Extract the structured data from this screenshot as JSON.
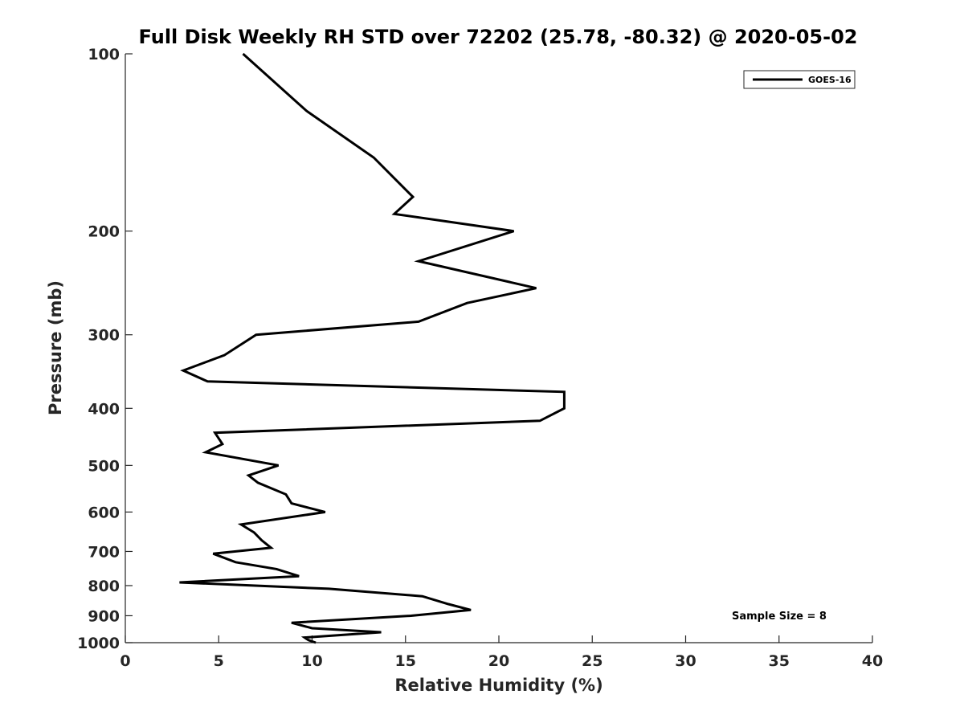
{
  "chart_data": {
    "type": "line",
    "title": "Full Disk Weekly RH STD over 72202 (25.78, -80.32) @ 2020-05-02",
    "xlabel": "Relative Humidity (%)",
    "ylabel": "Pressure (mb)",
    "xlim": [
      0,
      40
    ],
    "ylim": [
      100,
      1000
    ],
    "yscale": "log",
    "y_reversed": true,
    "grid": false,
    "legend_position": "top-right",
    "x_ticks": [
      0,
      5,
      10,
      15,
      20,
      25,
      30,
      35,
      40
    ],
    "y_ticks": [
      100,
      200,
      300,
      400,
      500,
      600,
      700,
      800,
      900,
      1000
    ],
    "series": [
      {
        "name": "GOES-16",
        "color": "#000000",
        "points": [
          [
            6.3,
            100
          ],
          [
            9.7,
            125
          ],
          [
            13.3,
            150
          ],
          [
            15.4,
            175
          ],
          [
            14.4,
            187
          ],
          [
            20.8,
            200
          ],
          [
            15.7,
            225
          ],
          [
            22.0,
            250
          ],
          [
            18.3,
            265
          ],
          [
            15.7,
            285
          ],
          [
            7.0,
            300
          ],
          [
            5.3,
            325
          ],
          [
            3.1,
            345
          ],
          [
            4.4,
            360
          ],
          [
            23.5,
            375
          ],
          [
            23.5,
            400
          ],
          [
            22.2,
            420
          ],
          [
            4.8,
            440
          ],
          [
            5.2,
            460
          ],
          [
            4.3,
            475
          ],
          [
            8.2,
            500
          ],
          [
            6.6,
            520
          ],
          [
            7.1,
            535
          ],
          [
            8.6,
            560
          ],
          [
            8.9,
            580
          ],
          [
            10.7,
            600
          ],
          [
            6.2,
            630
          ],
          [
            6.9,
            650
          ],
          [
            7.3,
            670
          ],
          [
            7.8,
            690
          ],
          [
            4.7,
            706
          ],
          [
            5.9,
            730
          ],
          [
            8.1,
            750
          ],
          [
            9.3,
            771
          ],
          [
            2.9,
            790
          ],
          [
            10.9,
            810
          ],
          [
            15.9,
            834
          ],
          [
            17.3,
            860
          ],
          [
            18.5,
            880
          ],
          [
            15.3,
            900
          ],
          [
            8.9,
            925
          ],
          [
            10.0,
            945
          ],
          [
            13.7,
            960
          ],
          [
            9.6,
            980
          ],
          [
            9.8,
            990
          ],
          [
            10.2,
            1000
          ]
        ]
      }
    ],
    "annotation": "Sample Size = 8"
  }
}
